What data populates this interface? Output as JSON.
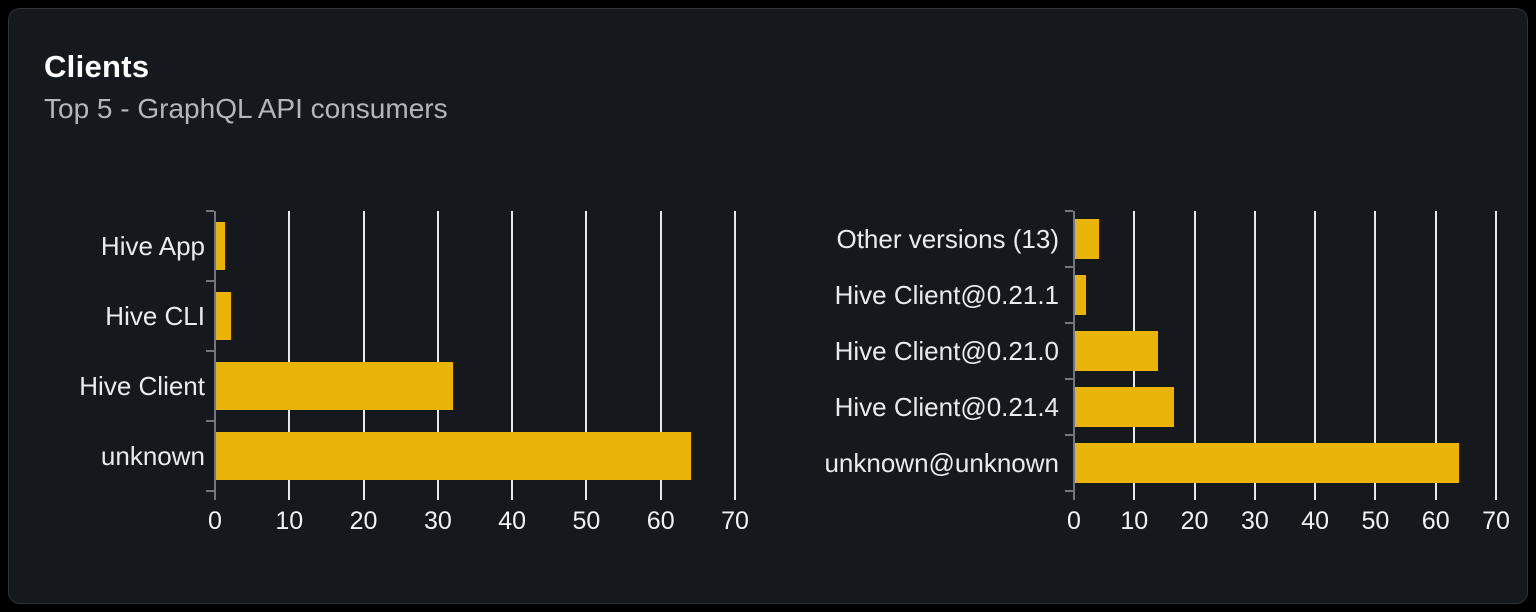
{
  "card": {
    "title": "Clients",
    "subtitle": "Top 5 - GraphQL API consumers"
  },
  "colors": {
    "page_bg": "#000000",
    "card_bg": "#15181d",
    "card_border": "#2e3238",
    "bar": "#e9b308",
    "gridline": "#e7e9ec",
    "axis": "#72767e",
    "category_label": "#e9ebee",
    "tick_label": "#eff1f4",
    "subtitle": "#b2b6bd"
  },
  "chart_data": [
    {
      "name": "clients-by-name",
      "type": "bar",
      "orientation": "horizontal",
      "categories": [
        "Hive App",
        "Hive CLI",
        "Hive Client",
        "unknown"
      ],
      "values": [
        1.2,
        2.0,
        31.9,
        63.9
      ],
      "xticks": [
        0,
        10,
        20,
        30,
        40,
        50,
        60,
        70
      ],
      "xlim": [
        0,
        70
      ],
      "xlabel": "",
      "ylabel": "",
      "grid": true,
      "legend": "none"
    },
    {
      "name": "clients-by-version",
      "type": "bar",
      "orientation": "horizontal",
      "categories": [
        "Other versions (13)",
        "Hive Client@0.21.1",
        "Hive Client@0.21.0",
        "Hive Client@0.21.4",
        "unknown@unknown"
      ],
      "values": [
        3.9,
        1.9,
        13.8,
        16.4,
        63.7
      ],
      "xticks": [
        0,
        10,
        20,
        30,
        40,
        50,
        60,
        70
      ],
      "xlim": [
        0,
        70
      ],
      "xlabel": "",
      "ylabel": "",
      "grid": true,
      "legend": "none"
    }
  ]
}
